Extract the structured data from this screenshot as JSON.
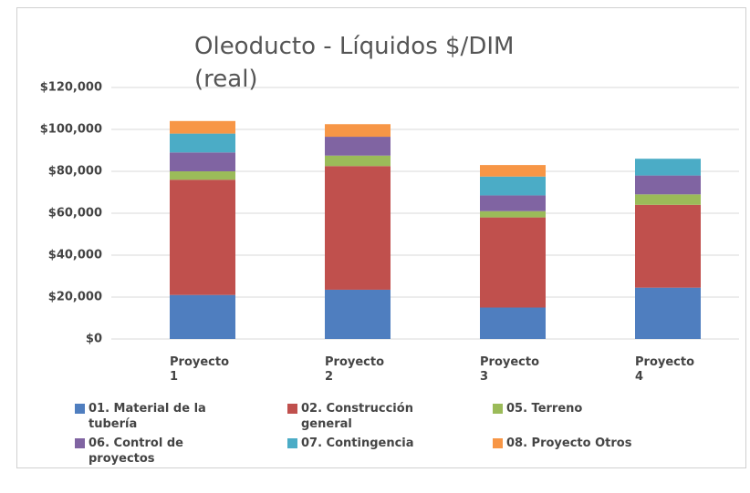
{
  "chart_data": {
    "type": "stacked_bar",
    "title": "Oleoducto - Líquidos $/DIM (real)",
    "categories": [
      "Proyecto 1",
      "Proyecto 2",
      "Proyecto 3",
      "Proyecto 4"
    ],
    "series": [
      {
        "name": "01. Material de la tubería",
        "color": "#4f7ebf",
        "values": [
          21000,
          23500,
          15000,
          24500
        ]
      },
      {
        "name": "02. Construcción general",
        "color": "#c0504d",
        "values": [
          55000,
          59000,
          43000,
          39500
        ]
      },
      {
        "name": "05. Terreno",
        "color": "#9bbb59",
        "values": [
          4000,
          5000,
          3000,
          5000
        ]
      },
      {
        "name": "06. Control de proyectos",
        "color": "#8064a2",
        "values": [
          9000,
          9000,
          7500,
          9000
        ]
      },
      {
        "name": "07. Contingencia",
        "color": "#4bacc6",
        "values": [
          9000,
          0,
          9000,
          8000
        ]
      },
      {
        "name": "08. Proyecto Otros",
        "color": "#f79646",
        "values": [
          6000,
          6000,
          5500,
          0
        ]
      }
    ],
    "ylim": [
      0,
      120000
    ],
    "yticks": [
      {
        "value": 0,
        "label": "$0"
      },
      {
        "value": 20000,
        "label": "$20,000"
      },
      {
        "value": 40000,
        "label": "$40,000"
      },
      {
        "value": 60000,
        "label": "$60,000"
      },
      {
        "value": 80000,
        "label": "$80,000"
      },
      {
        "value": 100000,
        "label": "$100,000"
      },
      {
        "value": 120000,
        "label": "$120,000"
      }
    ],
    "grid": true
  }
}
